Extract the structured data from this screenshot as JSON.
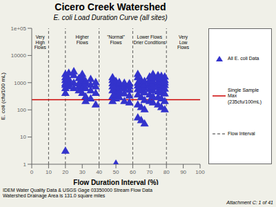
{
  "chart_data": {
    "type": "scatter",
    "title": "Cicero Creek Watershed",
    "subtitle": "E. coli Load Duration Curve (all sites)",
    "x_label": "Flow Duration Interval (%)",
    "y_label": "E. coli (cfu/100 mL)",
    "log": "y",
    "grid": false,
    "legend": "right",
    "background_color": "#f0f0e8",
    "plot_background_color": "#ffffff",
    "xlim": [
      0,
      100
    ],
    "xticks": [
      0,
      10,
      20,
      30,
      40,
      50,
      60,
      70,
      80,
      90,
      100
    ],
    "ylim": [
      1,
      100000
    ],
    "yticks": [
      1,
      10,
      100,
      1000,
      10000,
      {
        "value": 100000,
        "label": "1e+05"
      }
    ],
    "series": [
      {
        "name": "All E. coli Data",
        "color": "#3333cc",
        "marker": "triangle",
        "x": [
          20,
          20,
          20,
          20,
          20,
          20,
          20,
          20,
          22,
          22,
          22,
          22,
          22,
          25,
          25,
          25,
          25,
          28,
          28,
          28,
          28,
          30,
          30,
          30,
          30,
          30,
          30,
          32,
          32,
          32,
          32,
          32,
          35,
          35,
          35,
          35,
          38,
          38,
          38,
          38,
          48,
          48,
          48,
          48,
          48,
          48,
          48,
          50,
          50,
          50,
          50,
          50,
          50,
          50,
          52,
          52,
          52,
          52,
          52,
          52,
          55,
          55,
          55,
          55,
          55,
          58,
          58,
          58,
          58,
          58,
          63,
          63,
          63,
          63,
          63,
          63,
          63,
          63,
          65,
          65,
          65,
          65,
          65,
          65,
          65,
          67,
          67,
          67,
          67,
          67,
          67,
          67,
          70,
          70,
          70,
          70,
          70,
          70,
          70,
          72,
          72,
          72,
          72,
          72,
          72,
          72,
          72,
          75,
          75,
          75,
          75,
          75,
          75,
          75,
          75,
          77,
          77,
          77,
          77,
          77,
          77,
          77,
          77,
          79,
          79,
          79,
          79,
          79,
          79,
          79,
          79
        ],
        "values": [
          800,
          600,
          1200,
          1500,
          2000,
          900,
          3,
          400,
          700,
          1100,
          1300,
          850,
          2200,
          600,
          950,
          1800,
          2500,
          500,
          900,
          1400,
          700,
          400,
          800,
          1200,
          600,
          1600,
          2000,
          300,
          600,
          900,
          200,
          1100,
          250,
          500,
          800,
          1300,
          150,
          400,
          700,
          1000,
          300,
          500,
          700,
          900,
          1200,
          200,
          1500,
          250,
          450,
          650,
          850,
          1100,
          350,
          1,
          280,
          480,
          680,
          880,
          1000,
          400,
          200,
          380,
          580,
          780,
          950,
          180,
          320,
          520,
          720,
          900,
          50,
          150,
          350,
          550,
          750,
          950,
          1500,
          2000,
          40,
          120,
          280,
          480,
          680,
          880,
          1200,
          30,
          100,
          220,
          420,
          620,
          820,
          1100,
          200,
          350,
          550,
          750,
          950,
          1200,
          1600,
          180,
          300,
          500,
          700,
          900,
          1100,
          1500,
          2000,
          150,
          280,
          450,
          650,
          850,
          1050,
          1400,
          1800,
          120,
          250,
          420,
          620,
          820,
          1050,
          1300,
          1700,
          100,
          200,
          380,
          580,
          780,
          980,
          1200,
          1600
        ]
      }
    ],
    "horizontal_line": {
      "value": 235,
      "label": "Single Sample Max\n(235cfu/100mL)",
      "color": "#cc0000"
    },
    "vertical_lines": {
      "values": [
        10,
        20,
        40,
        60,
        80
      ],
      "label": "Flow Interval",
      "color": "#333333",
      "line_style": "dashed"
    },
    "annotations": [
      {
        "x": 5,
        "y": 60000,
        "text": "Very\nHigh\nFlows"
      },
      {
        "x": 30,
        "y": 60000,
        "text": "Higher\nFlows"
      },
      {
        "x": 50,
        "y": 60000,
        "text": "\"Normal\"\nFlows"
      },
      {
        "x": 70,
        "y": 60000,
        "text": "Lower Flows\nDrier Conditions"
      },
      {
        "x": 90,
        "y": 60000,
        "text": "Very\nLow\nFlows"
      }
    ],
    "footer_left": "IDEM Water Quality Data & USGS Gage 03350000 Stream Flow Data\nWatershed Drainage Area is 131.0 square miles",
    "footer_right": "Attachment C: 1 of 41"
  }
}
